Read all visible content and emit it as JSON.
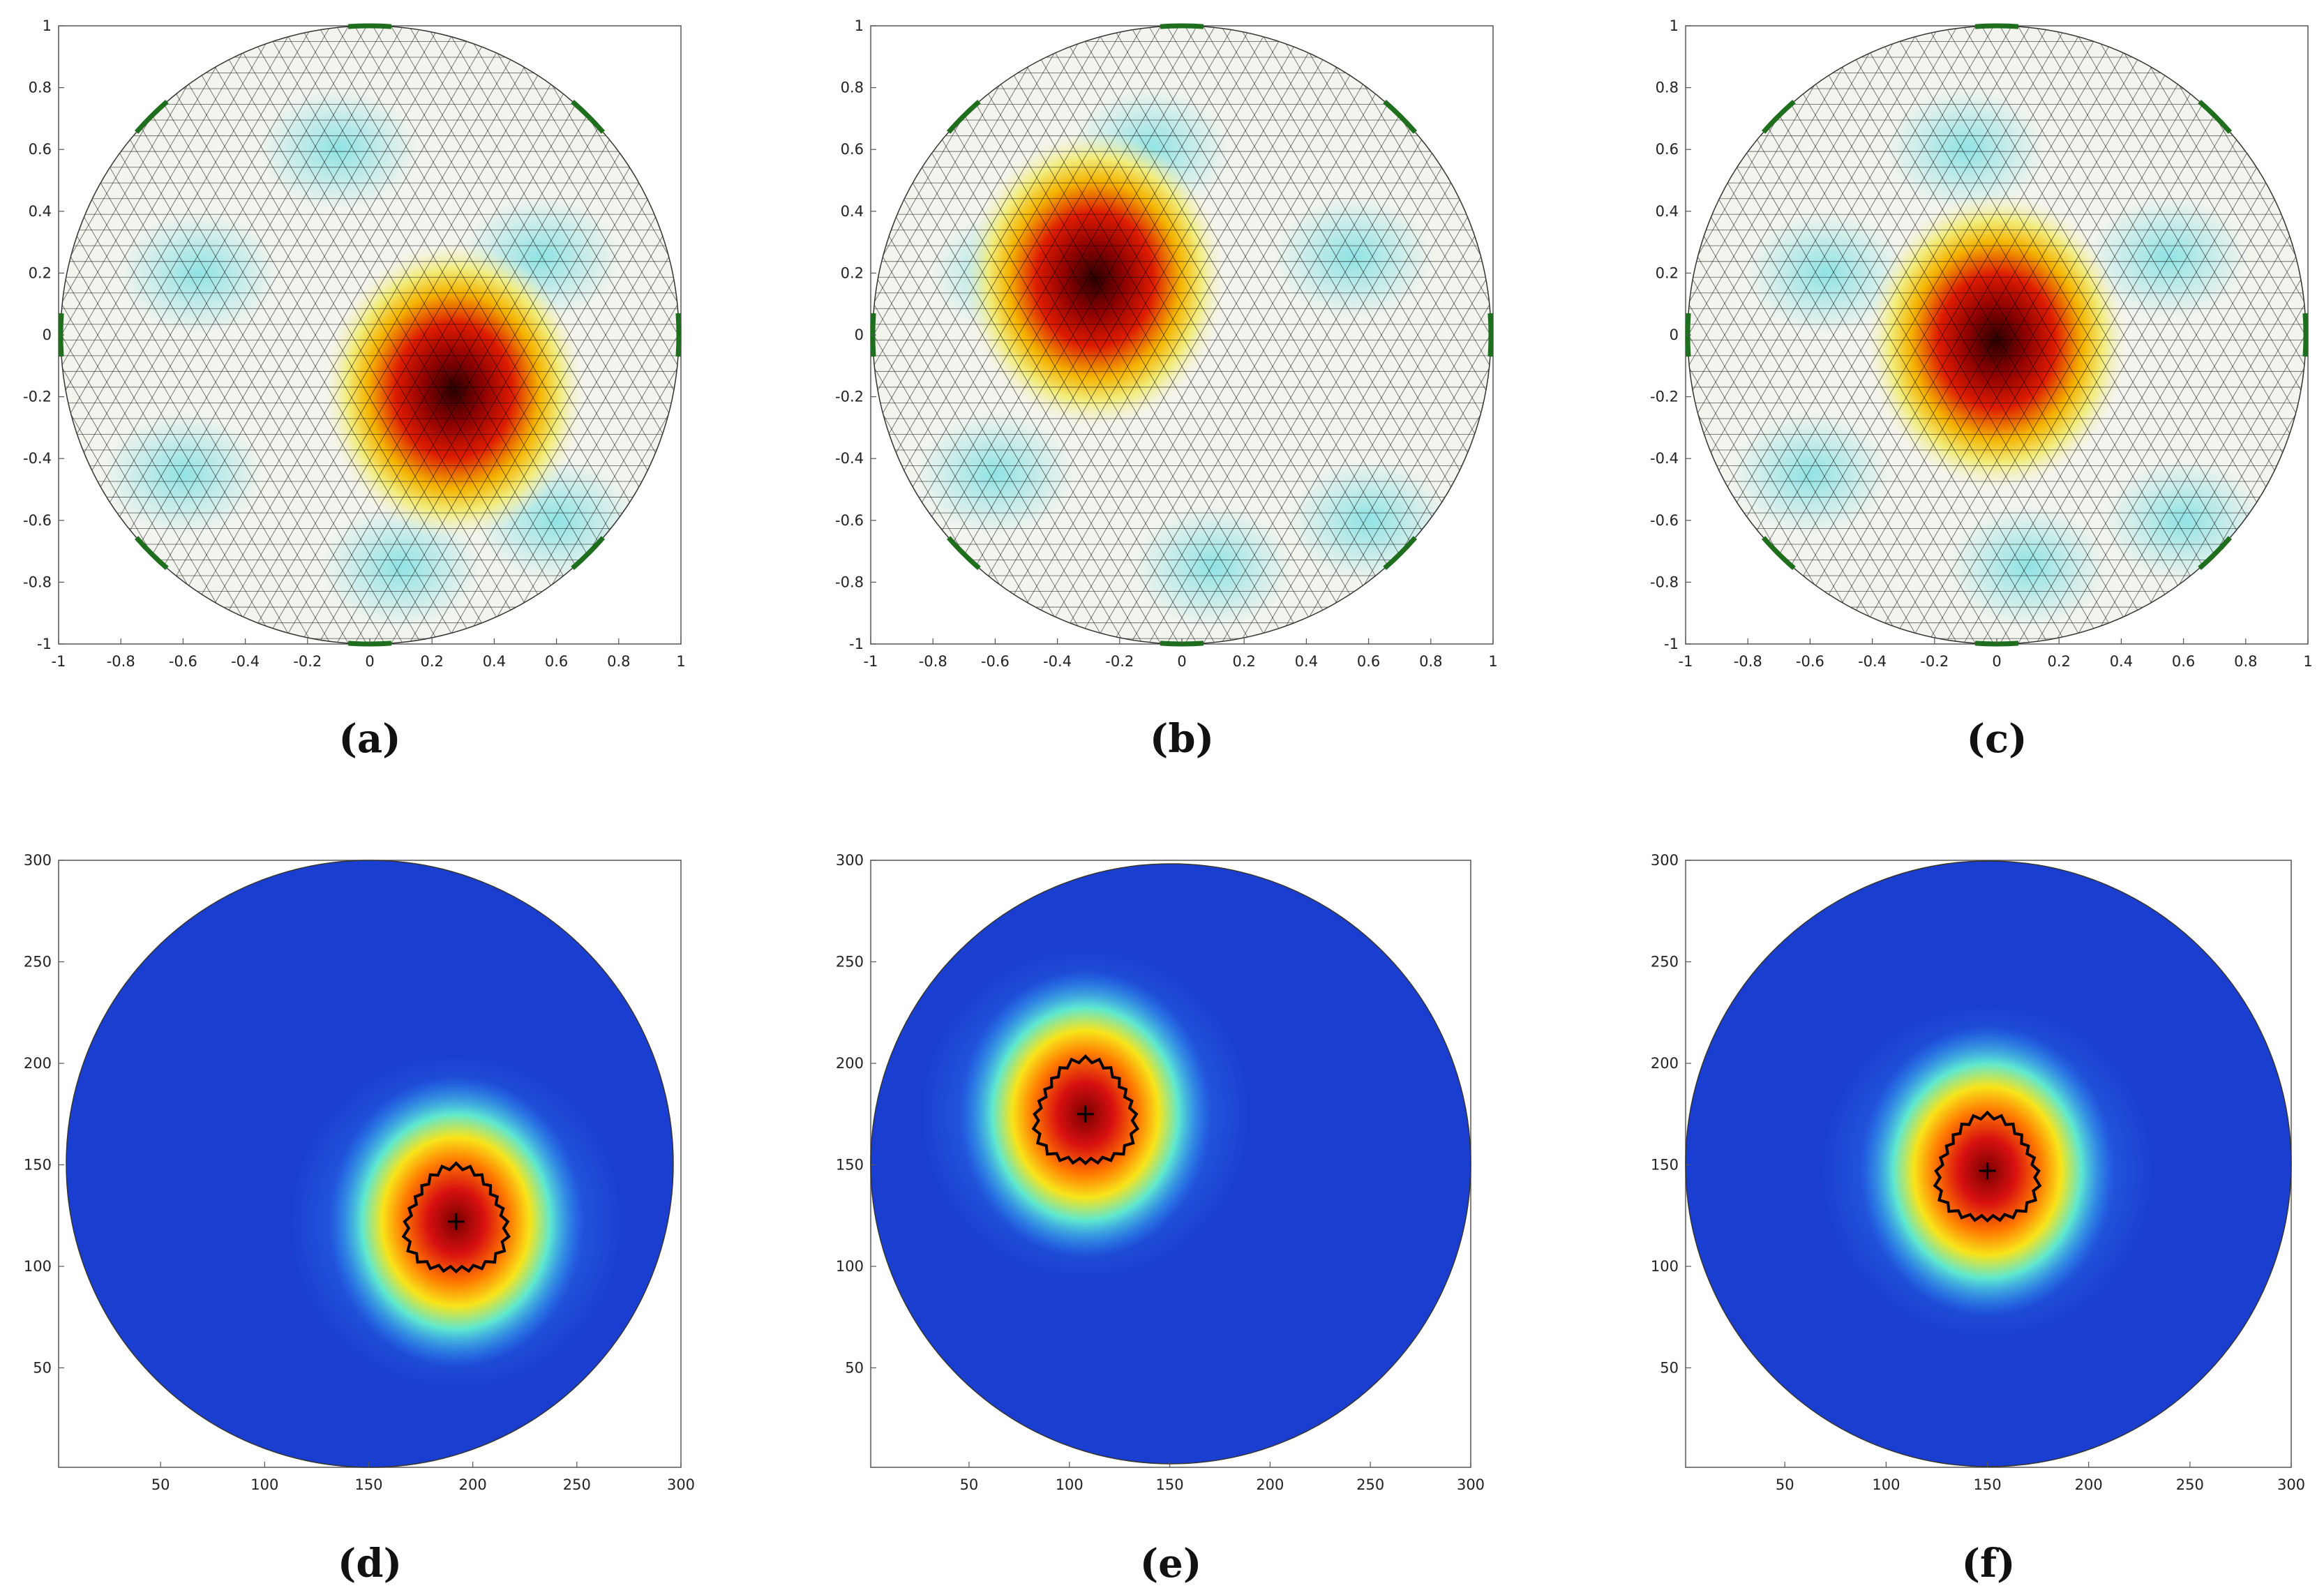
{
  "colors": {
    "mesh_line": "#000000",
    "electrode": "#1e6e1e",
    "contour": "#000000",
    "background": "#ffffff"
  },
  "chart_data": [
    {
      "type": "heatmap",
      "panel_label": "(a)",
      "style": "mesh",
      "xlim": [
        -1,
        1
      ],
      "ylim": [
        -1,
        1
      ],
      "x_ticks": [
        "-1",
        "-0.8",
        "-0.6",
        "-0.4",
        "-0.2",
        "0",
        "0.2",
        "0.4",
        "0.6",
        "0.8",
        "1"
      ],
      "y_ticks": [
        "-1",
        "-0.8",
        "-0.6",
        "-0.4",
        "-0.2",
        "0",
        "0.2",
        "0.4",
        "0.6",
        "0.8",
        "1"
      ],
      "peak": {
        "x": 0.27,
        "y": -0.18
      },
      "grid": false
    },
    {
      "type": "heatmap",
      "panel_label": "(b)",
      "style": "mesh",
      "xlim": [
        -1,
        1
      ],
      "ylim": [
        -1,
        1
      ],
      "x_ticks": [
        "-1",
        "-0.8",
        "-0.6",
        "-0.4",
        "-0.2",
        "0",
        "0.2",
        "0.4",
        "0.6",
        "0.8",
        "1"
      ],
      "y_ticks": [
        "-1",
        "-0.8",
        "-0.6",
        "-0.4",
        "-0.2",
        "0",
        "0.2",
        "0.4",
        "0.6",
        "0.8",
        "1"
      ],
      "peak": {
        "x": -0.28,
        "y": 0.18
      },
      "grid": false
    },
    {
      "type": "heatmap",
      "panel_label": "(c)",
      "style": "mesh",
      "xlim": [
        -1,
        1
      ],
      "ylim": [
        -1,
        1
      ],
      "x_ticks": [
        "-1",
        "-0.8",
        "-0.6",
        "-0.4",
        "-0.2",
        "0",
        "0.2",
        "0.4",
        "0.6",
        "0.8",
        "1"
      ],
      "y_ticks": [
        "-1",
        "-0.8",
        "-0.6",
        "-0.4",
        "-0.2",
        "0",
        "0.2",
        "0.4",
        "0.6",
        "0.8",
        "1"
      ],
      "peak": {
        "x": 0.0,
        "y": -0.02
      },
      "grid": false
    },
    {
      "type": "heatmap",
      "panel_label": "(d)",
      "style": "pixel",
      "xlim": [
        1,
        300
      ],
      "ylim": [
        1,
        300
      ],
      "x_ticks": [
        "50",
        "100",
        "150",
        "200",
        "250",
        "300"
      ],
      "y_ticks": [
        "50",
        "100",
        "150",
        "200",
        "250",
        "300"
      ],
      "peak": {
        "x": 192,
        "y": 122
      },
      "grid": false
    },
    {
      "type": "heatmap",
      "panel_label": "(e)",
      "style": "pixel",
      "xlim": [
        1,
        300
      ],
      "ylim": [
        1,
        300
      ],
      "x_ticks": [
        "50",
        "100",
        "150",
        "200",
        "250",
        "300"
      ],
      "y_ticks": [
        "50",
        "100",
        "150",
        "200",
        "250",
        "300"
      ],
      "peak": {
        "x": 108,
        "y": 175
      },
      "grid": false
    },
    {
      "type": "heatmap",
      "panel_label": "(f)",
      "style": "pixel",
      "xlim": [
        1,
        300
      ],
      "ylim": [
        1,
        300
      ],
      "x_ticks": [
        "50",
        "100",
        "150",
        "200",
        "250",
        "300"
      ],
      "y_ticks": [
        "50",
        "100",
        "150",
        "200",
        "250",
        "300"
      ],
      "peak": {
        "x": 150,
        "y": 147
      },
      "grid": false
    }
  ]
}
